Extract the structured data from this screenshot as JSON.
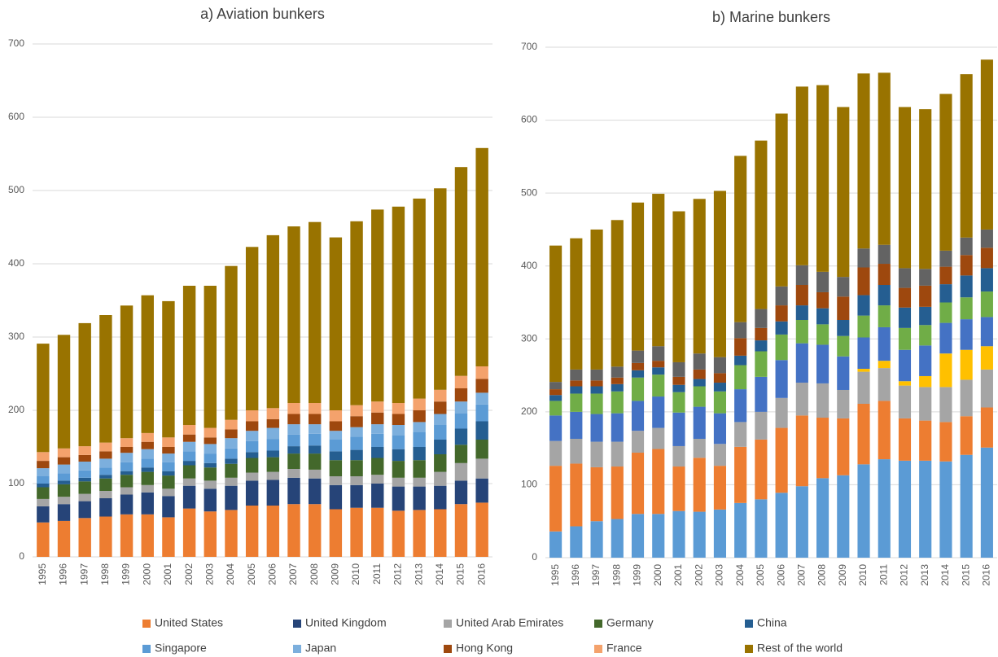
{
  "chart_data": [
    {
      "type": "stacked-bar",
      "title": "a) Aviation bunkers",
      "categories": [
        "1995",
        "1996",
        "1997",
        "1998",
        "1999",
        "2000",
        "2001",
        "2002",
        "2003",
        "2004",
        "2005",
        "2006",
        "2007",
        "2008",
        "2009",
        "2010",
        "2011",
        "2012",
        "2013",
        "2014",
        "2015",
        "2016"
      ],
      "ylim": [
        0,
        700
      ],
      "yticks": [
        0,
        100,
        200,
        300,
        400,
        500,
        600,
        700
      ],
      "grid": true,
      "series": [
        {
          "name": "United States",
          "color": "#ED7D31",
          "values": [
            47,
            49,
            53,
            55,
            58,
            58,
            54,
            66,
            62,
            64,
            70,
            70,
            72,
            72,
            65,
            67,
            67,
            63,
            64,
            65,
            72,
            74
          ]
        },
        {
          "name": "United Kingdom",
          "color": "#264478",
          "values": [
            22,
            23,
            23,
            25,
            27,
            30,
            29,
            31,
            31,
            33,
            34,
            35,
            36,
            35,
            33,
            31,
            33,
            33,
            32,
            32,
            32,
            33
          ]
        },
        {
          "name": "United Arab Emirates",
          "color": "#A5A5A5",
          "values": [
            10,
            10,
            10,
            10,
            10,
            10,
            10,
            10,
            11,
            11,
            11,
            11,
            12,
            12,
            12,
            12,
            12,
            12,
            12,
            19,
            24,
            27
          ]
        },
        {
          "name": "Germany",
          "color": "#43682B",
          "values": [
            16,
            17,
            17,
            17,
            17,
            18,
            18,
            18,
            18,
            19,
            20,
            20,
            21,
            22,
            22,
            22,
            23,
            23,
            24,
            24,
            25,
            26
          ]
        },
        {
          "name": "China",
          "color": "#255E91",
          "values": [
            5,
            5,
            5,
            5,
            5,
            6,
            6,
            6,
            6,
            7,
            8,
            9,
            10,
            11,
            12,
            14,
            15,
            16,
            18,
            20,
            22,
            25
          ]
        },
        {
          "name": "Singapore",
          "color": "#5B9BD5",
          "values": [
            10,
            10,
            10,
            10,
            12,
            12,
            12,
            13,
            13,
            14,
            15,
            16,
            16,
            16,
            16,
            18,
            18,
            19,
            20,
            20,
            21,
            23
          ]
        },
        {
          "name": "Japan",
          "color": "#7CAFDD",
          "values": [
            11,
            12,
            12,
            12,
            13,
            13,
            12,
            13,
            13,
            14,
            14,
            15,
            14,
            13,
            12,
            13,
            13,
            14,
            14,
            15,
            16,
            16
          ]
        },
        {
          "name": "Hong Kong",
          "color": "#9E480E",
          "values": [
            10,
            10,
            9,
            10,
            8,
            10,
            9,
            10,
            9,
            12,
            13,
            12,
            14,
            14,
            13,
            15,
            16,
            15,
            16,
            17,
            18,
            19
          ]
        },
        {
          "name": "France",
          "color": "#F4A26C",
          "values": [
            12,
            12,
            12,
            12,
            12,
            12,
            13,
            13,
            13,
            13,
            15,
            15,
            15,
            15,
            15,
            15,
            15,
            15,
            16,
            16,
            17,
            17
          ]
        },
        {
          "name": "Rest of the world",
          "color": "#997300",
          "values": [
            148,
            155,
            168,
            174,
            181,
            188,
            186,
            190,
            194,
            210,
            223,
            236,
            241,
            247,
            236,
            251,
            262,
            268,
            273,
            275,
            285,
            298
          ]
        }
      ]
    },
    {
      "type": "stacked-bar",
      "title": "b) Marine bunkers",
      "categories": [
        "1995",
        "1996",
        "1997",
        "1998",
        "1999",
        "2000",
        "2001",
        "2002",
        "2003",
        "2004",
        "2005",
        "2006",
        "2007",
        "2008",
        "2009",
        "2010",
        "2011",
        "2012",
        "2013",
        "2014",
        "2015",
        "2016"
      ],
      "ylim": [
        0,
        700
      ],
      "yticks": [
        0,
        100,
        200,
        300,
        400,
        500,
        600,
        700
      ],
      "grid": true,
      "series": [
        {
          "color": "#5B9BD5",
          "values": [
            36,
            43,
            50,
            53,
            60,
            60,
            64,
            63,
            66,
            75,
            80,
            89,
            98,
            109,
            113,
            128,
            135,
            133,
            133,
            132,
            141,
            151
          ]
        },
        {
          "color": "#ED7D31",
          "values": [
            90,
            86,
            74,
            72,
            84,
            89,
            61,
            74,
            60,
            77,
            82,
            89,
            97,
            83,
            78,
            83,
            80,
            58,
            55,
            54,
            53,
            55
          ]
        },
        {
          "color": "#A5A5A5",
          "values": [
            34,
            34,
            35,
            34,
            30,
            29,
            28,
            26,
            30,
            34,
            38,
            41,
            45,
            47,
            39,
            44,
            45,
            45,
            46,
            48,
            50,
            52
          ]
        },
        {
          "color": "#FFC000",
          "values": [
            0,
            0,
            0,
            0,
            0,
            0,
            0,
            0,
            0,
            0,
            0,
            0,
            0,
            0,
            0,
            4,
            10,
            6,
            15,
            46,
            41,
            32
          ]
        },
        {
          "color": "#4472C4",
          "values": [
            35,
            37,
            38,
            39,
            41,
            43,
            46,
            44,
            42,
            45,
            48,
            52,
            54,
            53,
            46,
            43,
            46,
            43,
            42,
            42,
            42,
            40
          ]
        },
        {
          "color": "#70AD47",
          "values": [
            20,
            25,
            28,
            30,
            32,
            30,
            28,
            28,
            30,
            33,
            35,
            35,
            32,
            28,
            28,
            30,
            30,
            30,
            28,
            28,
            30,
            35
          ]
        },
        {
          "color": "#255E91",
          "values": [
            8,
            10,
            10,
            10,
            10,
            10,
            10,
            10,
            12,
            13,
            15,
            18,
            20,
            22,
            22,
            28,
            28,
            28,
            25,
            25,
            30,
            32
          ]
        },
        {
          "color": "#9E480E",
          "values": [
            8,
            8,
            8,
            9,
            10,
            9,
            11,
            13,
            13,
            24,
            17,
            22,
            28,
            22,
            32,
            38,
            29,
            27,
            29,
            24,
            28,
            28
          ]
        },
        {
          "color": "#636363",
          "values": [
            10,
            15,
            15,
            15,
            17,
            20,
            20,
            22,
            22,
            22,
            26,
            26,
            27,
            28,
            27,
            26,
            26,
            27,
            23,
            22,
            24,
            25
          ]
        },
        {
          "color": "#997300",
          "values": [
            187,
            180,
            192,
            201,
            203,
            209,
            207,
            212,
            228,
            228,
            231,
            237,
            245,
            256,
            233,
            240,
            236,
            221,
            219,
            215,
            224,
            233
          ]
        }
      ]
    }
  ]
}
